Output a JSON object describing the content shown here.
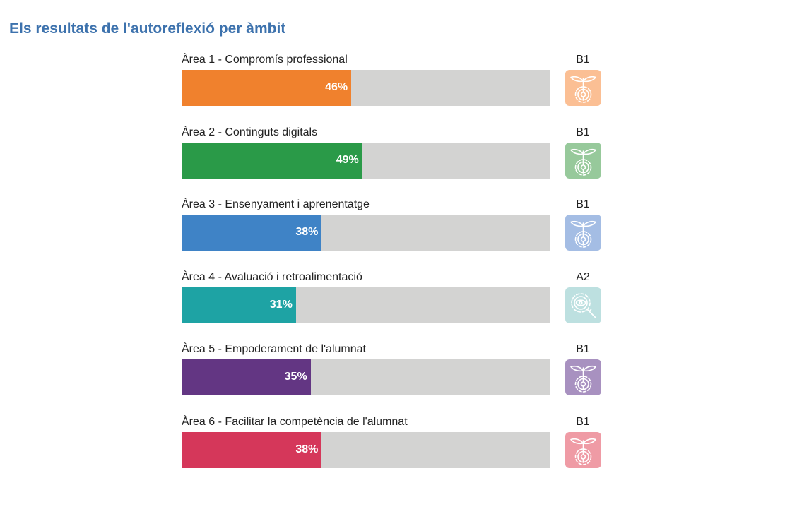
{
  "title": "Els resultats de l'autoreflexió per àmbit",
  "areas": [
    {
      "label": "Àrea 1 - Compromís professional",
      "percent": 46,
      "percent_label": "46%",
      "level": "B1",
      "color": "#f0812d",
      "icon_color": "#fbbf94",
      "icon": "sprout-gear-icon"
    },
    {
      "label": "Àrea 2 - Continguts digitals",
      "percent": 49,
      "percent_label": "49%",
      "level": "B1",
      "color": "#2a9a48",
      "icon_color": "#97c99b",
      "icon": "sprout-gear-icon"
    },
    {
      "label": "Àrea 3 - Ensenyament i aprenentatge",
      "percent": 38,
      "percent_label": "38%",
      "level": "B1",
      "color": "#3f83c6",
      "icon_color": "#a4bde4",
      "icon": "sprout-gear-icon"
    },
    {
      "label": "Àrea 4 - Avaluació i retroalimentació",
      "percent": 31,
      "percent_label": "31%",
      "level": "A2",
      "color": "#1ea3a4",
      "icon_color": "#bde0e0",
      "icon": "gear-magnifier-icon"
    },
    {
      "label": "Àrea 5 - Empoderament de l'alumnat",
      "percent": 35,
      "percent_label": "35%",
      "level": "B1",
      "color": "#633683",
      "icon_color": "#a891c0",
      "icon": "sprout-gear-icon"
    },
    {
      "label": "Àrea 6 - Facilitar la competència de l'alumnat",
      "percent": 38,
      "percent_label": "38%",
      "level": "B1",
      "color": "#d5375a",
      "icon_color": "#ef9ba5",
      "icon": "sprout-gear-icon"
    }
  ]
}
